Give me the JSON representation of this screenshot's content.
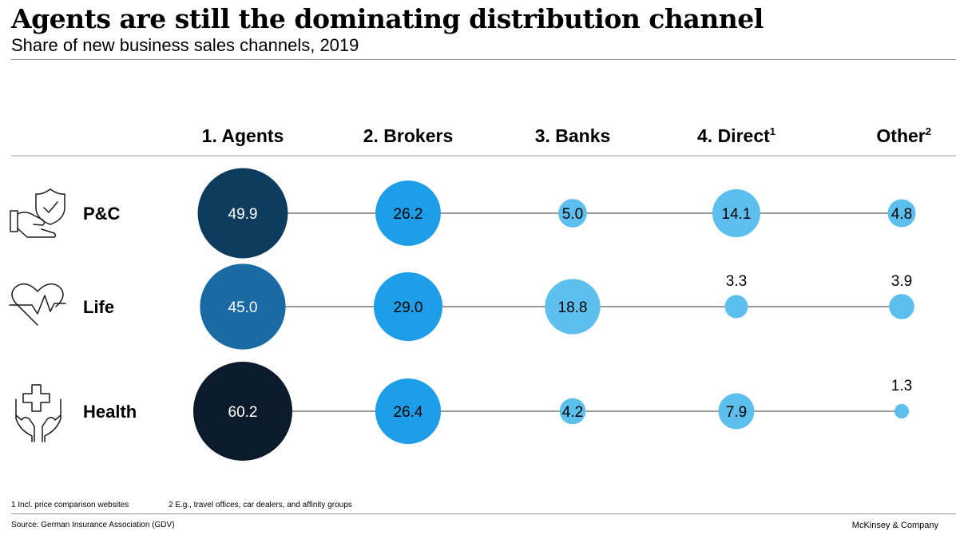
{
  "header": {
    "title": "Agents are still the dominating distribution channel",
    "subtitle": "Share of new business sales channels, 2019"
  },
  "footer": {
    "note1": "1 Incl. price comparison websites",
    "note2": "2 E.g., travel offices, car dealers, and affinity groups",
    "source": "Source: German Insurance Association (GDV)",
    "brand": "McKinsey & Company"
  },
  "chart_data": {
    "type": "bubble-matrix",
    "columns": [
      {
        "label": "1. Agents",
        "sup": ""
      },
      {
        "label": "2. Brokers",
        "sup": ""
      },
      {
        "label": "3. Banks",
        "sup": ""
      },
      {
        "label": "4. Direct",
        "sup": "1"
      },
      {
        "label": "Other",
        "sup": "2"
      }
    ],
    "rows": [
      {
        "label": "P&C",
        "icon": "shield-hand-icon",
        "values": [
          49.9,
          26.2,
          5.0,
          14.1,
          4.8
        ]
      },
      {
        "label": "Life",
        "icon": "heart-pulse-icon",
        "values": [
          45.0,
          29.0,
          18.8,
          3.3,
          3.9
        ]
      },
      {
        "label": "Health",
        "icon": "medical-cross-hands-icon",
        "values": [
          60.2,
          26.4,
          4.2,
          7.9,
          1.3
        ]
      }
    ],
    "value_format": "0.0",
    "colors": {
      "pc_agents": "#0e3c5f",
      "life_agents": "#1a6aa3",
      "health_agents": "#0c1b2b",
      "brokers": "#1e9ee8",
      "minor": "#5cbfee",
      "line": "#333333"
    }
  }
}
